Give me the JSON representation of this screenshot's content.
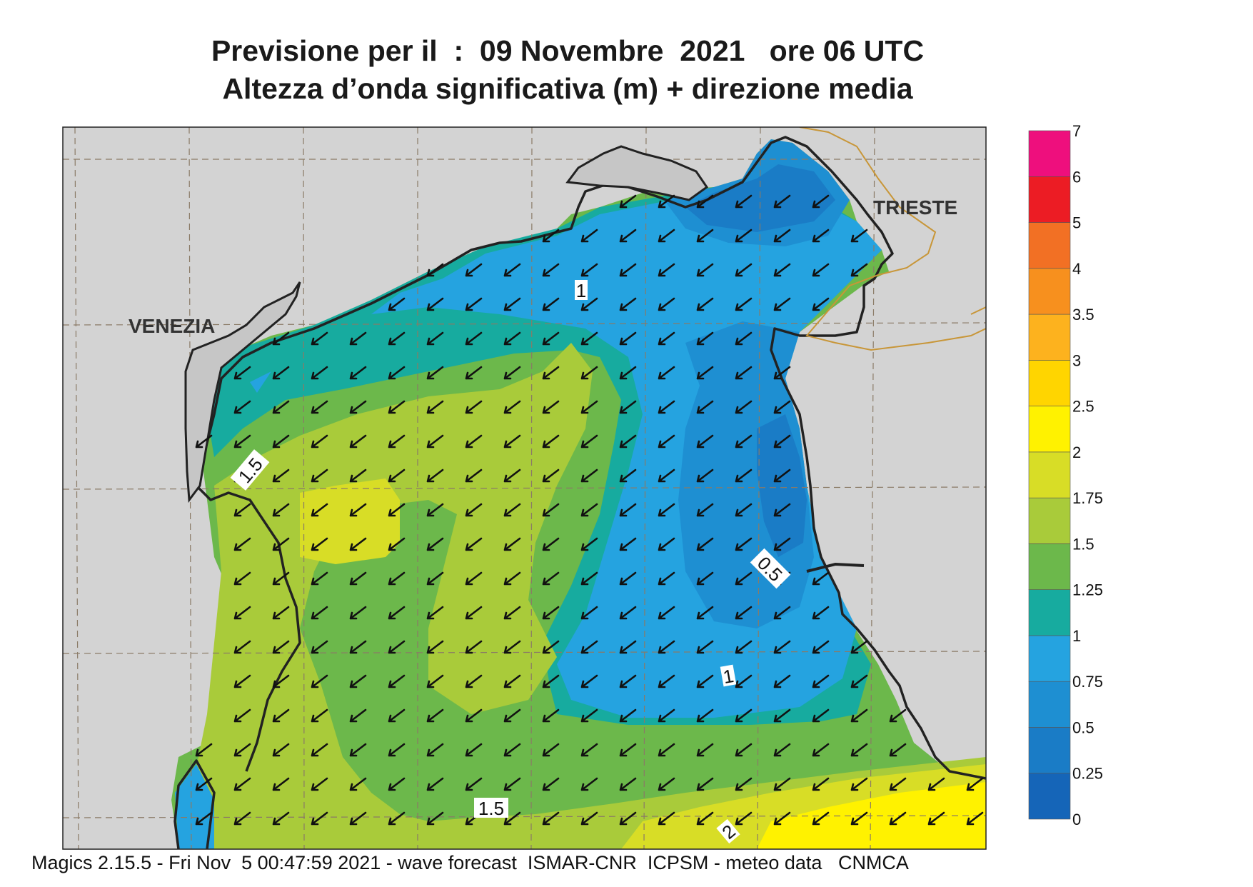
{
  "title": {
    "line1": "Previsione per il  :  09 Novembre  2021   ore 06 UTC",
    "line2": "Altezza d’onda significativa (m) + direzione media"
  },
  "places": [
    {
      "name": "VENEZIA"
    },
    {
      "name": "TRIESTE"
    }
  ],
  "contour_labels": [
    {
      "text": "1"
    },
    {
      "text": "1.5"
    },
    {
      "text": "0.5"
    },
    {
      "text": "1"
    },
    {
      "text": "1.5"
    },
    {
      "text": "2"
    }
  ],
  "legend": {
    "ticks": [
      "0",
      "0.25",
      "0.5",
      "0.75",
      "1",
      "1.25",
      "1.5",
      "1.75",
      "2",
      "2.5",
      "3",
      "3.5",
      "4",
      "5",
      "6",
      "7"
    ],
    "colors": [
      "#1565b8",
      "#1a7cc6",
      "#1e8fd2",
      "#25a3e0",
      "#17ab9f",
      "#6cb84b",
      "#a9cb3a",
      "#d8dd26",
      "#fff200",
      "#ffd500",
      "#fdb21e",
      "#f7901e",
      "#f27024",
      "#ec1c24",
      "#ee0f7d"
    ]
  },
  "footer": "Magics 2.15.5 - Fri Nov  5 00:47:59 2021 - wave forecast  ISMAR-CNR  ICPSM - meteo data   CNMCA",
  "mean_direction_arrow": "southwest"
}
